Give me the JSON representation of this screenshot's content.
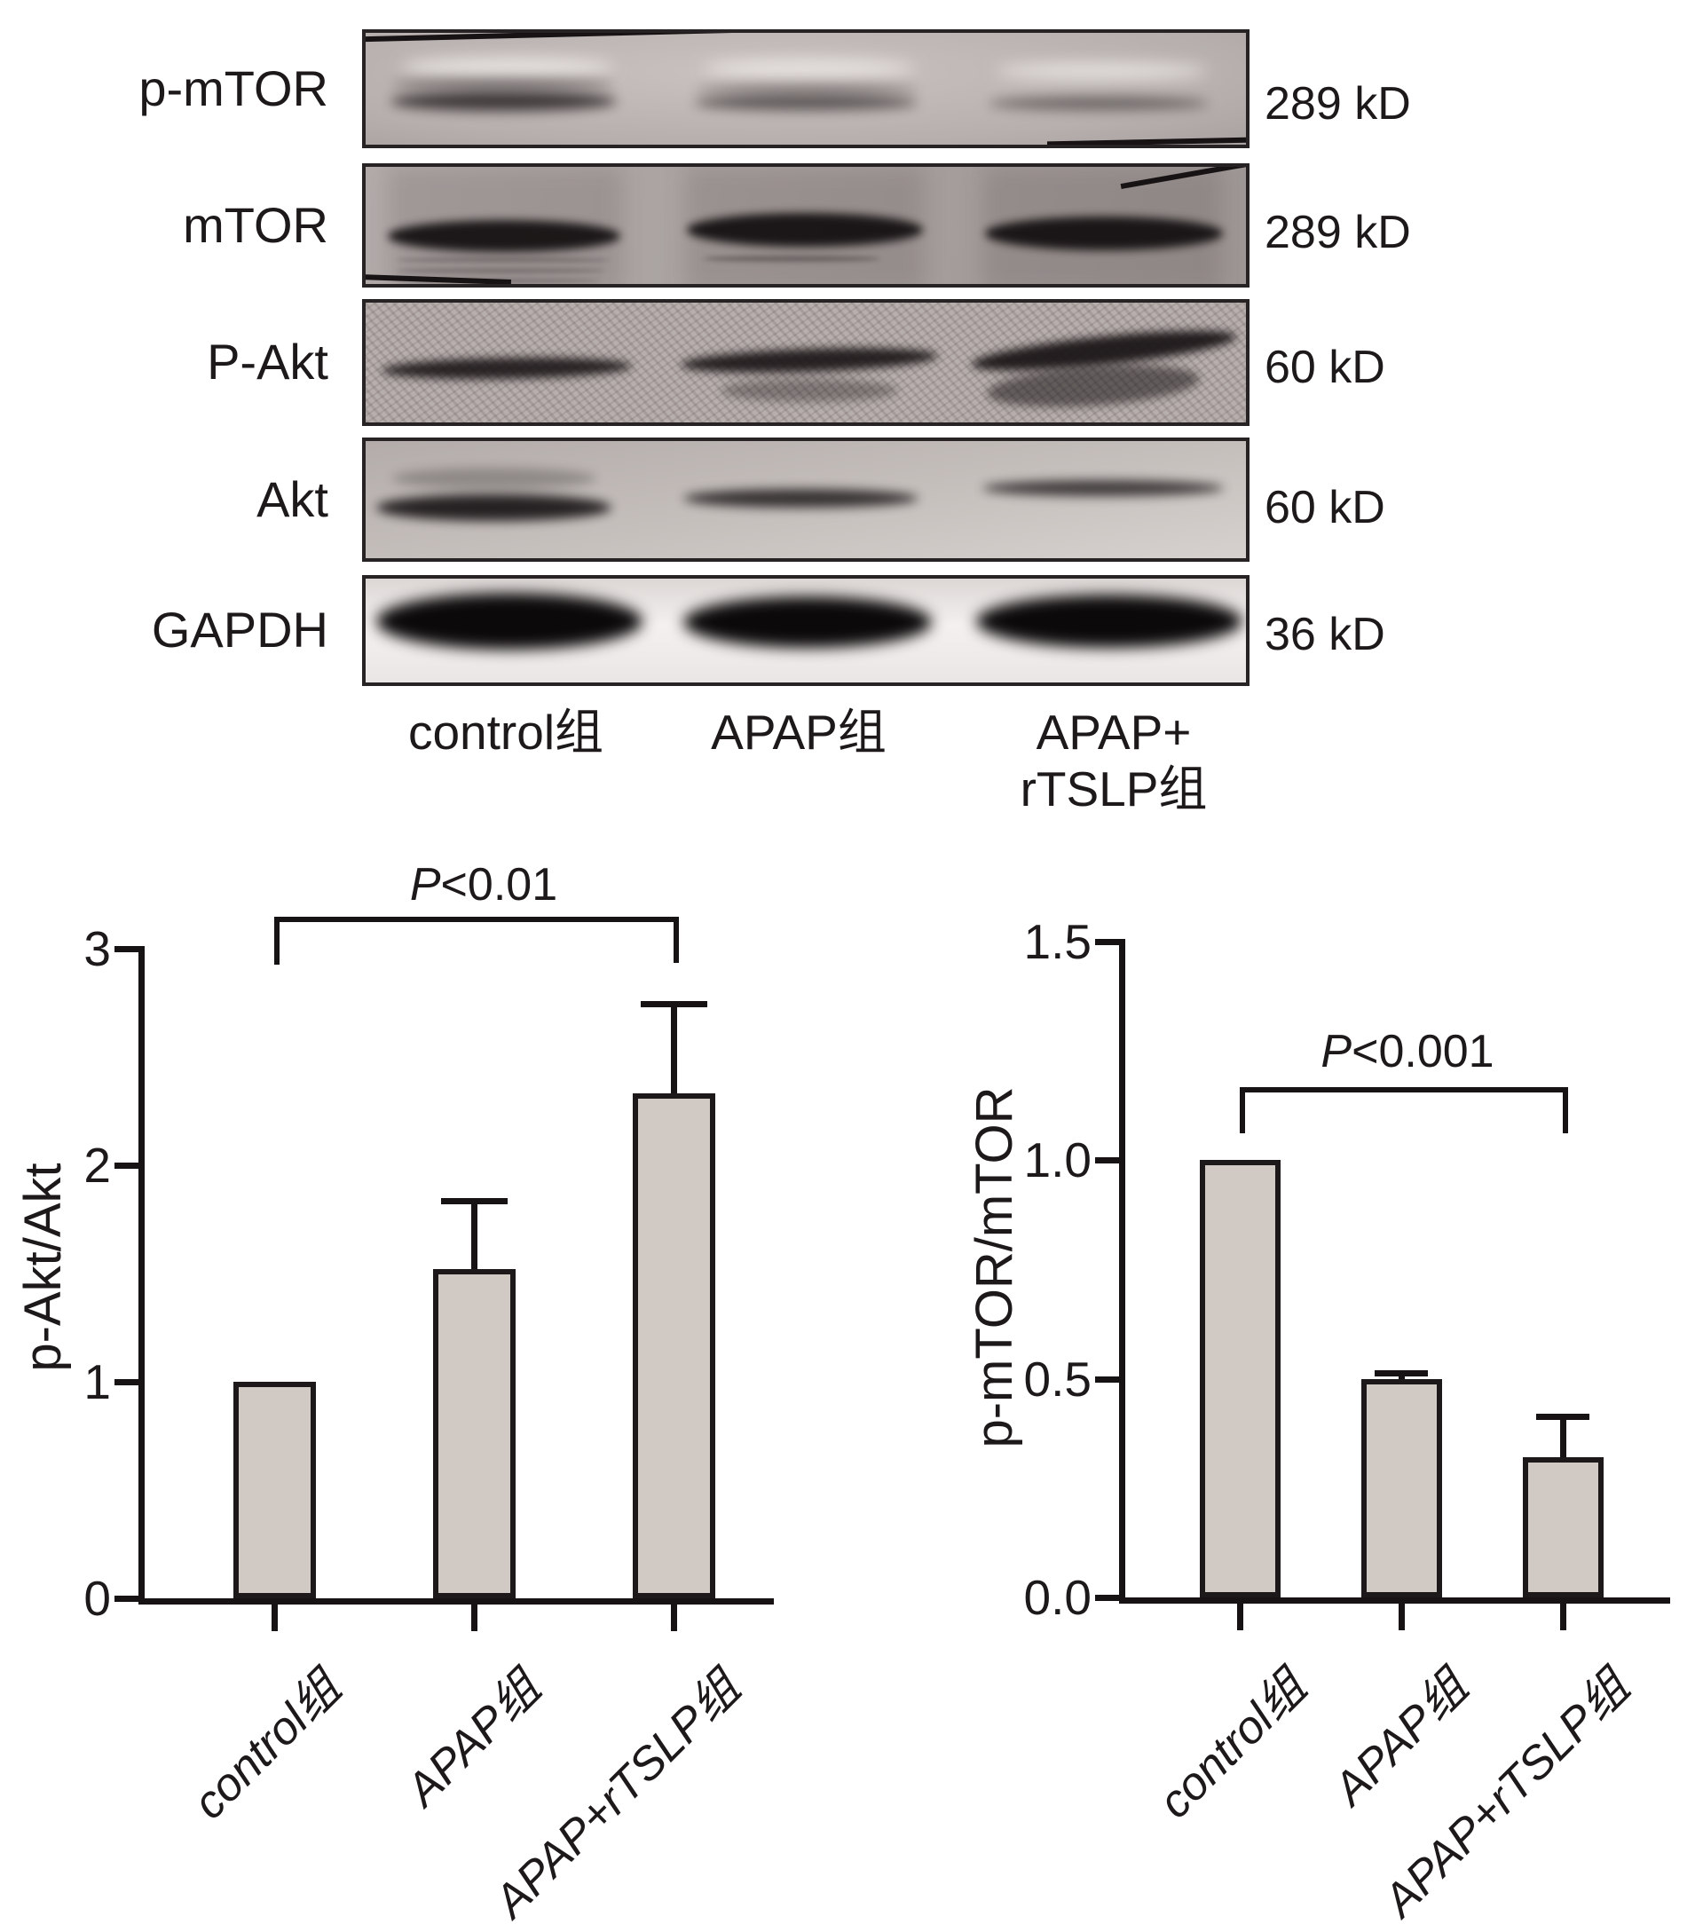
{
  "figure": {
    "blot": {
      "rows": [
        {
          "protein": "p-mTOR",
          "kd": "289 kD"
        },
        {
          "protein": "mTOR",
          "kd": "289 kD"
        },
        {
          "protein": "P-Akt",
          "kd": "60 kD"
        },
        {
          "protein": "Akt",
          "kd": "60 kD"
        },
        {
          "protein": "GAPDH",
          "kd": "36 kD"
        }
      ],
      "lanes": [
        "control组",
        "APAP组",
        "APAP+\nrTSLP组"
      ]
    }
  },
  "chart_data": [
    {
      "type": "bar",
      "title": "",
      "ylabel": "p-Akt/Akt",
      "xlabel": "",
      "categories": [
        "control组",
        "APAP组",
        "APAP+rTSLP组"
      ],
      "values": [
        1.0,
        1.52,
        2.33
      ],
      "errors_plus": [
        0,
        0.33,
        0.43
      ],
      "ylim": [
        0,
        3
      ],
      "yticks": [
        0,
        1,
        2,
        3
      ],
      "ytick_labels": [
        "0",
        "1",
        "2",
        "3"
      ],
      "grid": false,
      "legend": null,
      "bar_color": "#d0c9c4",
      "significance": {
        "label": "P<0.01",
        "from_category": "control组",
        "to_category": "APAP+rTSLP组"
      }
    },
    {
      "type": "bar",
      "title": "",
      "ylabel": "p-mTOR/mTOR",
      "xlabel": "",
      "categories": [
        "control组",
        "APAP组",
        "APAP+rTSLP组"
      ],
      "values": [
        1.0,
        0.5,
        0.32
      ],
      "errors_plus": [
        0,
        0.02,
        0.1
      ],
      "ylim": [
        0,
        1.5
      ],
      "yticks": [
        0,
        0.5,
        1.0,
        1.5
      ],
      "ytick_labels": [
        "0.0",
        "0.5",
        "1.0",
        "1.5"
      ],
      "grid": false,
      "legend": null,
      "bar_color": "#d0c9c4",
      "significance": {
        "label": "P<0.001",
        "from_category": "control组",
        "to_category": "APAP+rTSLP组"
      }
    }
  ]
}
